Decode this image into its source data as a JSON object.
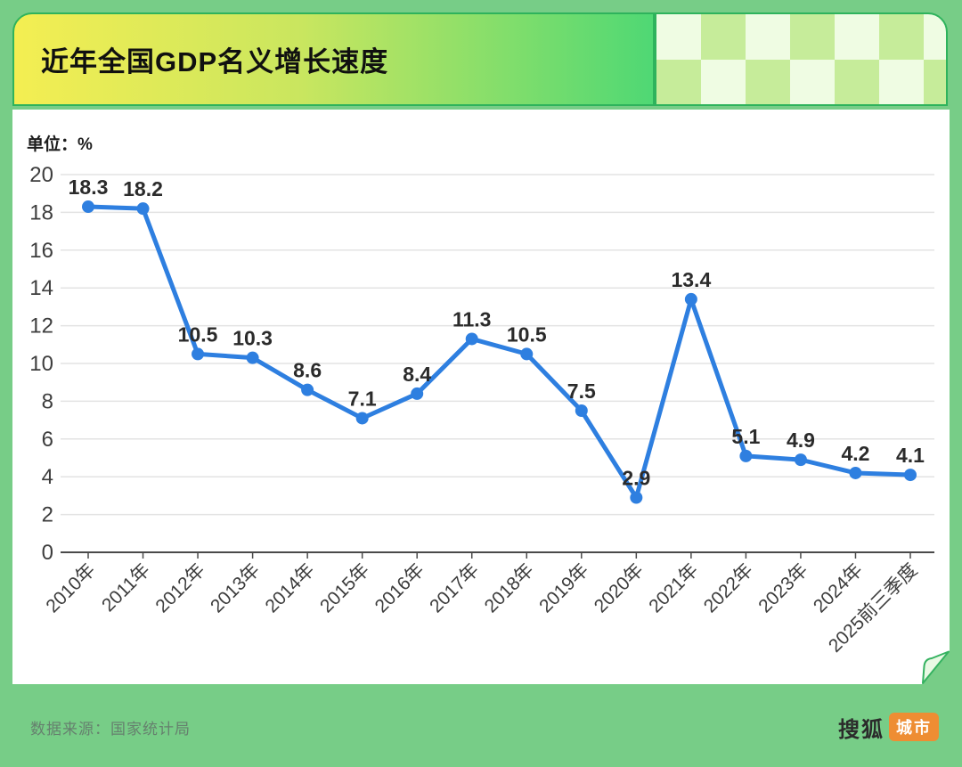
{
  "header": {
    "title": "近年全国GDP名义增长速度"
  },
  "chart": {
    "unit_label": "单位：%"
  },
  "chart_data": {
    "type": "line",
    "title": "近年全国GDP名义增长速度",
    "unit": "%",
    "categories": [
      "2010年",
      "2011年",
      "2012年",
      "2013年",
      "2014年",
      "2015年",
      "2016年",
      "2017年",
      "2018年",
      "2019年",
      "2020年",
      "2021年",
      "2022年",
      "2023年",
      "2024年",
      "2025前三季度"
    ],
    "values": [
      18.3,
      18.2,
      10.5,
      10.3,
      8.6,
      7.1,
      8.4,
      11.3,
      10.5,
      7.5,
      2.9,
      13.4,
      5.1,
      4.9,
      4.2,
      4.1
    ],
    "ylim": [
      0,
      20
    ],
    "ytick_step": 2,
    "grid": true,
    "legend": "none",
    "line_color": "#2E7FE0",
    "marker_color": "#2E7FE0",
    "label_color": "#2b2b2b",
    "grid_color": "#E3E3E3",
    "axis_color": "#4a4a4a"
  },
  "footer": {
    "source": "数据来源：国家统计局",
    "logo": {
      "brand": "搜狐",
      "badge": "城市",
      "badge_color": "#EE8D33"
    }
  },
  "colors": {
    "page_background": "#77CD87",
    "panel_border": "#2EB35C",
    "title_gradient_start": "#F4EE52",
    "title_gradient_end": "#4FD874",
    "checker_light": "#EFFCE3",
    "checker_green": "#C6EC9A",
    "card_background": "#FFFFFF",
    "curl_fill": "#E9F9E4"
  }
}
